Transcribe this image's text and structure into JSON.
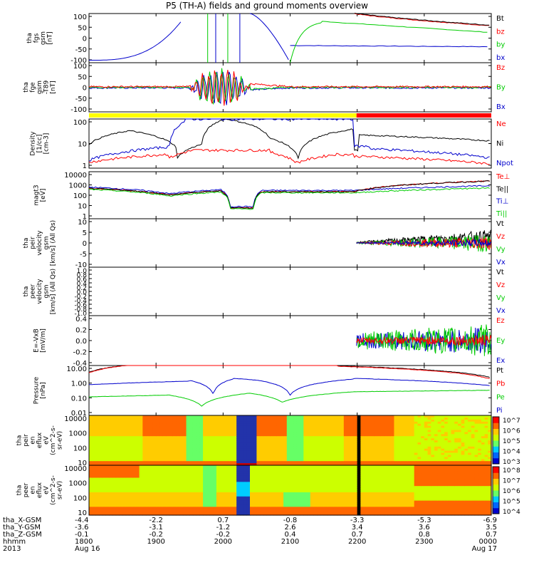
{
  "title": "P5 (TH-A) fields and ground moments overview",
  "chart_data": [
    {
      "type": "line",
      "panel": "fgs",
      "ylabel": [
        "tha",
        "fgs",
        "gsm",
        "[nT]"
      ],
      "ticks": [
        "100",
        "50",
        "0",
        "-50",
        "-100"
      ],
      "ylim": [
        -100,
        100
      ],
      "legend": [
        {
          "name": "Bt",
          "color": "#000000"
        },
        {
          "name": "bz",
          "color": "#ff0000"
        },
        {
          "name": "by",
          "color": "#00cc00"
        },
        {
          "name": "bx",
          "color": "#0000cc"
        }
      ]
    },
    {
      "type": "line",
      "panel": "fge_dc",
      "ylabel": [
        "tha",
        "fge",
        "gsm",
        "-T89",
        "[nT]"
      ],
      "ticks": [
        "100",
        "50",
        "0",
        "-50",
        "-100"
      ],
      "ylim": [
        -125,
        125
      ],
      "legend": [
        {
          "name": "Bz",
          "color": "#ff0000"
        },
        {
          "name": "By",
          "color": "#00cc00"
        },
        {
          "name": "Bx",
          "color": "#0000cc"
        }
      ]
    },
    {
      "type": "line",
      "panel": "density",
      "ylabel": [
        "Density",
        "[1/cc]",
        "[cm-3]"
      ],
      "ticks": [
        "100",
        "10",
        "1"
      ],
      "log": true,
      "legend": [
        {
          "name": "Ne",
          "color": "#ff0000"
        },
        {
          "name": "Ni",
          "color": "#000000"
        },
        {
          "name": "Npot",
          "color": "#0000cc"
        }
      ]
    },
    {
      "type": "line",
      "panel": "temperature",
      "ylabel": [
        "magt3",
        "[eV]"
      ],
      "ticks": [
        "10000",
        "1000",
        "100",
        "10",
        "1"
      ],
      "log": true,
      "legend": [
        {
          "name": "Te⊥",
          "color": "#ff0000"
        },
        {
          "name": "Te||",
          "color": "#000000"
        },
        {
          "name": "Ti⊥",
          "color": "#0000cc"
        },
        {
          "name": "Ti||",
          "color": "#00cc00"
        }
      ]
    },
    {
      "type": "line",
      "panel": "peir_velocity",
      "ylabel": [
        "tha",
        "peir",
        "velocity",
        "gsm",
        "[km/s] (All Qs)"
      ],
      "ticks": [
        "10",
        "5",
        "0",
        "-5",
        "-10"
      ],
      "ylim": [
        -10,
        10
      ],
      "legend": [
        {
          "name": "Vt",
          "color": "#000000"
        },
        {
          "name": "Vz",
          "color": "#ff0000"
        },
        {
          "name": "Vy",
          "color": "#00cc00"
        },
        {
          "name": "Vx",
          "color": "#0000cc"
        }
      ]
    },
    {
      "type": "line",
      "panel": "peer_velocity",
      "ylabel": [
        "tha",
        "peer",
        "velocity",
        "gsm",
        "[km/s] (All Qs)"
      ],
      "ticks": [
        "1.0",
        "0.8",
        "0.6",
        "0.4",
        "0.2",
        "0.0",
        "-0.2",
        "-0.4",
        "-0.6",
        "-0.8",
        "-1.0"
      ],
      "ylim": [
        -1,
        1
      ],
      "legend": [
        {
          "name": "Vt",
          "color": "#000000"
        },
        {
          "name": "Vz",
          "color": "#ff0000"
        },
        {
          "name": "Vy",
          "color": "#00cc00"
        },
        {
          "name": "Vx",
          "color": "#0000cc"
        }
      ]
    },
    {
      "type": "line",
      "panel": "efield",
      "ylabel": [
        "E=-VxB",
        "[mV/m]"
      ],
      "ticks": [
        "0.4",
        "0.2",
        "0.0",
        "-0.2",
        "-0.4"
      ],
      "ylim": [
        -0.45,
        0.45
      ],
      "legend": [
        {
          "name": "Ez",
          "color": "#ff0000"
        },
        {
          "name": "Ey",
          "color": "#00cc00"
        },
        {
          "name": "Ex",
          "color": "#0000cc"
        }
      ]
    },
    {
      "type": "line",
      "panel": "pressure",
      "ylabel": [
        "Pressure",
        "[nPa]"
      ],
      "ticks": [
        "10.00",
        "1.00",
        "0.10",
        "0.01"
      ],
      "log": true,
      "legend": [
        {
          "name": "Pt",
          "color": "#000000"
        },
        {
          "name": "Pb",
          "color": "#ff0000"
        },
        {
          "name": "Pe",
          "color": "#00cc00"
        },
        {
          "name": "Pi",
          "color": "#0000cc"
        }
      ]
    },
    {
      "type": "heatmap",
      "panel": "peir_spec",
      "ylabel": [
        "tha",
        "peir",
        "en",
        "eflux",
        "eV",
        "(cm^2-s-",
        "sr-eV)"
      ],
      "ticks": [
        "10000",
        "1000",
        "100",
        "10"
      ],
      "colorbar": [
        "10^7",
        "10^6",
        "10^5",
        "10^4",
        "10^3"
      ]
    },
    {
      "type": "heatmap",
      "panel": "peer_spec",
      "ylabel": [
        "tha",
        "peer",
        "en",
        "eflux",
        "eV",
        "(cm^2-s-",
        "sr-eV)"
      ],
      "ticks": [
        "10000",
        "1000",
        "100",
        "10"
      ],
      "colorbar": [
        "10^8",
        "10^7",
        "10^6",
        "10^5",
        "10^4"
      ]
    }
  ],
  "time_axis": {
    "row_labels": [
      "tha_X-GSM",
      "tha_Y-GSM",
      "tha_Z-GSM",
      "hhmm",
      "2013"
    ],
    "columns": [
      {
        "x": "-4.4",
        "y": "-3.6",
        "z": "-0.1",
        "hhmm": "1800",
        "date": "Aug 16"
      },
      {
        "x": "-2.2",
        "y": "-3.1",
        "z": "-0.2",
        "hhmm": "1900",
        "date": ""
      },
      {
        "x": "0.7",
        "y": "-1.2",
        "z": "-0.2",
        "hhmm": "2000",
        "date": ""
      },
      {
        "x": "-0.8",
        "y": "2.6",
        "z": "0.4",
        "hhmm": "2100",
        "date": ""
      },
      {
        "x": "-3.3",
        "y": "3.4",
        "z": "0.7",
        "hhmm": "2200",
        "date": ""
      },
      {
        "x": "-5.3",
        "y": "3.6",
        "z": "0.8",
        "hhmm": "2300",
        "date": ""
      },
      {
        "x": "-6.9",
        "y": "3.5",
        "z": "0.7",
        "hhmm": "0000",
        "date": "Aug 17"
      }
    ]
  }
}
